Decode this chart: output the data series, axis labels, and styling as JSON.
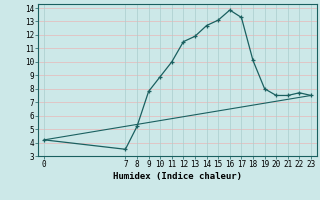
{
  "xlabel": "Humidex (Indice chaleur)",
  "bg_color": "#cce8e8",
  "line_color": "#1a6060",
  "grid_major_color": "#aacece",
  "grid_minor_color": "#e8b8b8",
  "line1_x": [
    0,
    7,
    8,
    9,
    10,
    11,
    12,
    13,
    14,
    15,
    16,
    17,
    18,
    19,
    20,
    21,
    22,
    23
  ],
  "line1_y": [
    4.2,
    3.5,
    5.2,
    7.8,
    8.9,
    10.0,
    11.5,
    11.9,
    12.7,
    13.1,
    13.85,
    13.3,
    10.1,
    8.0,
    7.5,
    7.5,
    7.7,
    7.5
  ],
  "line2_x": [
    0,
    23
  ],
  "line2_y": [
    4.2,
    7.5
  ],
  "xlim": [
    -0.5,
    23.5
  ],
  "ylim": [
    3,
    14.3
  ],
  "xticks": [
    0,
    7,
    8,
    9,
    10,
    11,
    12,
    13,
    14,
    15,
    16,
    17,
    18,
    19,
    20,
    21,
    22,
    23
  ],
  "yticks": [
    3,
    4,
    5,
    6,
    7,
    8,
    9,
    10,
    11,
    12,
    13,
    14
  ],
  "tick_fontsize": 5.5,
  "xlabel_fontsize": 6.5
}
